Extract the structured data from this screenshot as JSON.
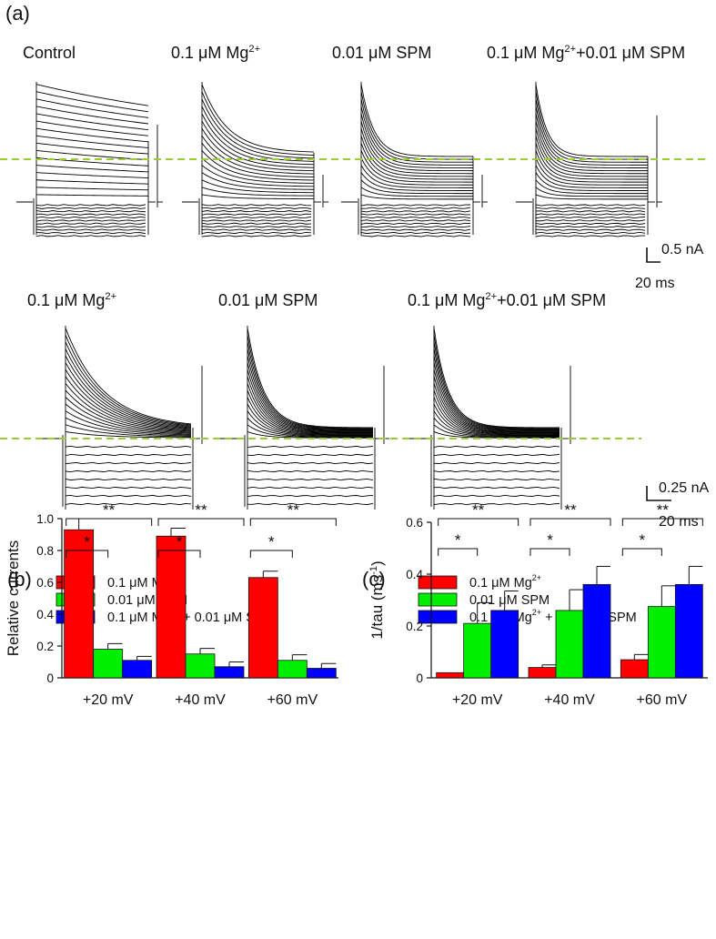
{
  "panel_a": {
    "letter": "(a)",
    "row1_titles": [
      [
        "Control",
        "",
        ""
      ],
      [
        "0.1 μM Mg",
        "2+",
        ""
      ],
      [
        "0.01 μM SPM",
        "",
        ""
      ],
      [
        "0.1 μM Mg",
        "2+",
        "+0.01 μM SPM"
      ]
    ],
    "row2_titles": [
      [
        "0.1 μM Mg",
        "2+",
        ""
      ],
      [
        "0.01 μM SPM",
        "",
        ""
      ],
      [
        "0.1 μM Mg",
        "2+",
        "+0.01 μM SPM"
      ]
    ],
    "scale_row1": {
      "current": "0.5 nA",
      "time": "20 ms"
    },
    "scale_row2": {
      "current": "0.25 nA",
      "time": "20 ms"
    }
  },
  "colors": {
    "mg": "#ff0000",
    "spm": "#00ee00",
    "combo": "#0000ff",
    "dashed_zero": "#9acd32",
    "trace": "#000000"
  },
  "chart_data": [
    {
      "panel": "(b)",
      "type": "bar",
      "categories": [
        "+20 mV",
        "+40 mV",
        "+60 mV"
      ],
      "series": [
        {
          "name_main": "0.1 μM Mg",
          "name_sup": "2+",
          "name_tail": "",
          "color": "#ff0000",
          "values": [
            0.93,
            0.89,
            0.63
          ],
          "errors": [
            0.07,
            0.05,
            0.04
          ]
        },
        {
          "name_main": "0.01 μM SPM",
          "name_sup": "",
          "name_tail": "",
          "color": "#00ee00",
          "values": [
            0.18,
            0.15,
            0.11
          ],
          "errors": [
            0.035,
            0.035,
            0.035
          ]
        },
        {
          "name_main": "0.1 μM Mg",
          "name_sup": "2+",
          "name_tail": " + 0.01 μM SPM",
          "color": "#0000ff",
          "values": [
            0.11,
            0.07,
            0.06
          ],
          "errors": [
            0.025,
            0.03,
            0.03
          ]
        }
      ],
      "ylabel": "Relative currents",
      "xlabel": "",
      "ylim": [
        0,
        1.0
      ],
      "yticks": [
        0,
        0.2,
        0.4,
        0.6,
        0.8,
        1.0
      ],
      "ytick_labels": [
        "0",
        "0.2",
        "0.4",
        "0.6",
        "0.8",
        "1.0"
      ],
      "significance": {
        "single": "*",
        "double": "**"
      },
      "legend": "top"
    },
    {
      "panel": "(c)",
      "type": "bar",
      "categories": [
        "+20 mV",
        "+40 mV",
        "+60 mV"
      ],
      "series": [
        {
          "name_main": "0.1 μM Mg",
          "name_sup": "2+",
          "name_tail": "",
          "color": "#ff0000",
          "values": [
            0.02,
            0.04,
            0.07
          ],
          "errors": [
            0.0,
            0.01,
            0.02
          ]
        },
        {
          "name_main": "0.01 μM SPM",
          "name_sup": "",
          "name_tail": "",
          "color": "#00ee00",
          "values": [
            0.21,
            0.26,
            0.275
          ],
          "errors": [
            0.08,
            0.08,
            0.08
          ]
        },
        {
          "name_main": "0.1 μM Mg",
          "name_sup": "2+",
          "name_tail": " + 0.01 μM SPM",
          "color": "#0000ff",
          "values": [
            0.26,
            0.36,
            0.36
          ],
          "errors": [
            0.075,
            0.07,
            0.07
          ]
        }
      ],
      "ylabel_main": "1/tau (ms",
      "ylabel_sup": "-1",
      "ylabel_tail": ")",
      "xlabel": "",
      "ylim": [
        0,
        0.6
      ],
      "yticks": [
        0,
        0.2,
        0.4,
        0.6
      ],
      "ytick_labels": [
        "0",
        "0.2",
        "0.4",
        "0.6"
      ],
      "significance": {
        "single": "*",
        "double": "**"
      },
      "legend": "top"
    }
  ]
}
